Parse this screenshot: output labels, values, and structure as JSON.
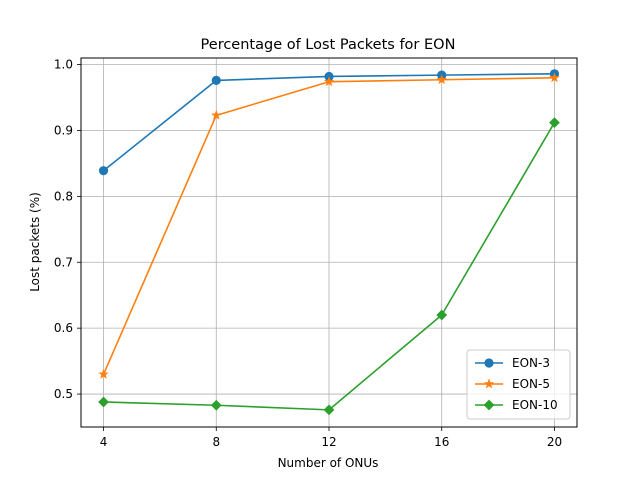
{
  "chart_data": {
    "type": "line",
    "title": "Percentage of Lost Packets for EON",
    "xlabel": "Number of ONUs",
    "ylabel": "Lost packets (%)",
    "x": [
      4,
      8,
      12,
      16,
      20
    ],
    "xticks": [
      "4",
      "8",
      "12",
      "16",
      "20"
    ],
    "yticks": [
      "0.5",
      "0.6",
      "0.7",
      "0.8",
      "0.9",
      "1.0"
    ],
    "xlim": [
      3.2,
      20.8
    ],
    "ylim": [
      0.45,
      1.01
    ],
    "grid": true,
    "legend_position": "lower-right",
    "series": [
      {
        "name": "EON-3",
        "color": "#1f77b4",
        "marker": "circle",
        "values": [
          0.839,
          0.976,
          0.982,
          0.984,
          0.986
        ]
      },
      {
        "name": "EON-5",
        "color": "#ff7f0e",
        "marker": "star",
        "values": [
          0.53,
          0.923,
          0.974,
          0.977,
          0.98
        ]
      },
      {
        "name": "EON-10",
        "color": "#2ca02c",
        "marker": "diamond",
        "values": [
          0.488,
          0.483,
          0.476,
          0.62,
          0.912
        ]
      }
    ]
  }
}
